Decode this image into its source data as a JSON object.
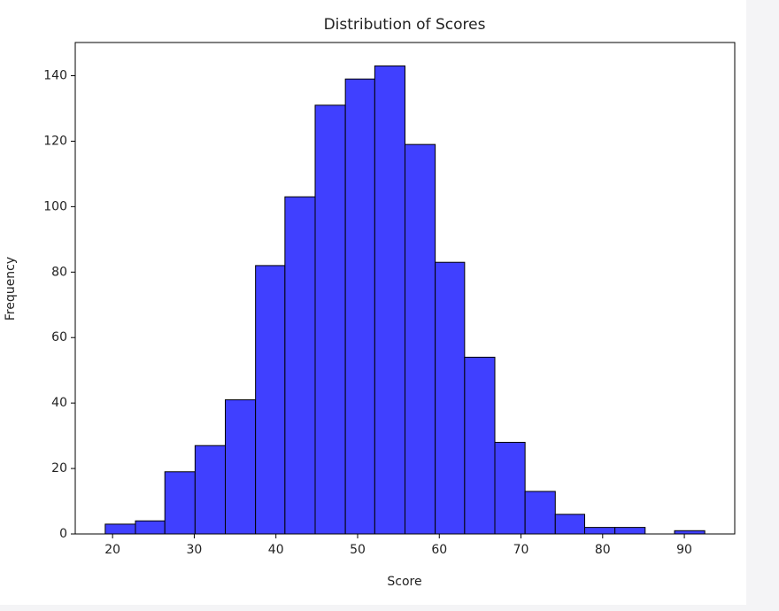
{
  "chart_data": {
    "type": "histogram",
    "title": "Distribution of Scores",
    "x_label": "Score",
    "y_label": "Frequency",
    "bins": [
      19.1,
      22.8,
      26.4,
      30.1,
      33.8,
      37.5,
      41.1,
      44.8,
      48.5,
      52.1,
      55.8,
      59.5,
      63.1,
      66.8,
      70.5,
      74.2,
      77.8,
      81.5,
      85.2,
      88.8,
      92.5
    ],
    "values": [
      3,
      4,
      19,
      27,
      41,
      82,
      103,
      131,
      139,
      143,
      119,
      83,
      54,
      28,
      13,
      6,
      2,
      2,
      0,
      1
    ],
    "color": "#4040ff",
    "edge_color": "#000000",
    "xlim": [
      15.43,
      96.17
    ],
    "xticks": [
      20,
      30,
      40,
      50,
      60,
      70,
      80,
      90
    ],
    "ylim": [
      0,
      150.15
    ],
    "yticks": [
      0,
      20,
      40,
      60,
      80,
      100,
      120,
      140
    ]
  }
}
